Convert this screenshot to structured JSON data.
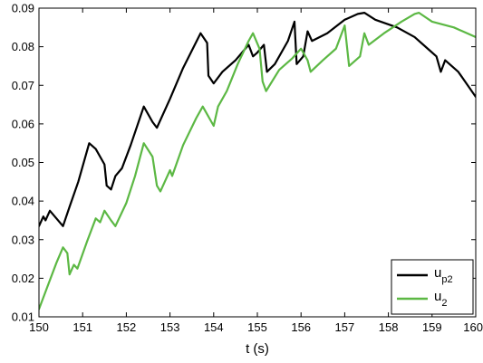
{
  "chart_data": {
    "type": "line",
    "title": "",
    "xlabel": "t (s)",
    "ylabel": "",
    "xlim": [
      150,
      160
    ],
    "ylim": [
      0.01,
      0.09
    ],
    "xticks": [
      150,
      151,
      152,
      153,
      154,
      155,
      156,
      157,
      158,
      159,
      160
    ],
    "xtick_labels": [
      "150",
      "151",
      "152",
      "153",
      "154",
      "155",
      "156",
      "157",
      "158",
      "159",
      "160"
    ],
    "yticks": [
      0.01,
      0.02,
      0.03,
      0.04,
      0.05,
      0.06,
      0.07,
      0.08,
      0.09
    ],
    "ytick_labels": [
      "0.01",
      "0.02",
      "0.03",
      "0.04",
      "0.05",
      "0.06",
      "0.07",
      "0.08",
      "0.09"
    ],
    "grid": false,
    "legend_position": "bottom-right",
    "series": [
      {
        "name": "u_p2",
        "legend_main": "u",
        "legend_sub": "p2",
        "color": "#000000",
        "points": [
          [
            150.0,
            0.0335
          ],
          [
            150.1,
            0.036
          ],
          [
            150.15,
            0.035
          ],
          [
            150.25,
            0.0375
          ],
          [
            150.4,
            0.0355
          ],
          [
            150.55,
            0.0335
          ],
          [
            150.7,
            0.0385
          ],
          [
            150.9,
            0.045
          ],
          [
            151.15,
            0.055
          ],
          [
            151.3,
            0.0535
          ],
          [
            151.5,
            0.0495
          ],
          [
            151.55,
            0.044
          ],
          [
            151.65,
            0.043
          ],
          [
            151.75,
            0.0465
          ],
          [
            151.9,
            0.0485
          ],
          [
            152.1,
            0.0545
          ],
          [
            152.4,
            0.0645
          ],
          [
            152.6,
            0.0605
          ],
          [
            152.7,
            0.059
          ],
          [
            153.0,
            0.0665
          ],
          [
            153.3,
            0.0745
          ],
          [
            153.7,
            0.0835
          ],
          [
            153.85,
            0.081
          ],
          [
            153.88,
            0.0725
          ],
          [
            154.0,
            0.0705
          ],
          [
            154.2,
            0.0735
          ],
          [
            154.5,
            0.0765
          ],
          [
            154.8,
            0.0805
          ],
          [
            154.9,
            0.0775
          ],
          [
            155.0,
            0.0785
          ],
          [
            155.15,
            0.0805
          ],
          [
            155.22,
            0.0735
          ],
          [
            155.4,
            0.0755
          ],
          [
            155.7,
            0.0815
          ],
          [
            155.85,
            0.0865
          ],
          [
            155.9,
            0.0755
          ],
          [
            156.05,
            0.0775
          ],
          [
            156.15,
            0.084
          ],
          [
            156.25,
            0.0815
          ],
          [
            156.6,
            0.0835
          ],
          [
            157.0,
            0.087
          ],
          [
            157.3,
            0.0885
          ],
          [
            157.45,
            0.0888
          ],
          [
            157.7,
            0.087
          ],
          [
            158.2,
            0.085
          ],
          [
            158.6,
            0.0825
          ],
          [
            158.9,
            0.0795
          ],
          [
            159.1,
            0.0775
          ],
          [
            159.2,
            0.0735
          ],
          [
            159.3,
            0.0765
          ],
          [
            159.6,
            0.0735
          ],
          [
            160.0,
            0.067
          ]
        ]
      },
      {
        "name": "u_2",
        "legend_main": "u",
        "legend_sub": "2",
        "color": "#5cb844",
        "points": [
          [
            150.0,
            0.012
          ],
          [
            150.2,
            0.018
          ],
          [
            150.4,
            0.024
          ],
          [
            150.55,
            0.028
          ],
          [
            150.65,
            0.0265
          ],
          [
            150.7,
            0.021
          ],
          [
            150.8,
            0.0235
          ],
          [
            150.88,
            0.0225
          ],
          [
            151.1,
            0.0295
          ],
          [
            151.3,
            0.0355
          ],
          [
            151.4,
            0.0345
          ],
          [
            151.5,
            0.0375
          ],
          [
            151.65,
            0.035
          ],
          [
            151.75,
            0.0335
          ],
          [
            152.0,
            0.0395
          ],
          [
            152.2,
            0.0465
          ],
          [
            152.4,
            0.055
          ],
          [
            152.6,
            0.0515
          ],
          [
            152.7,
            0.044
          ],
          [
            152.78,
            0.0425
          ],
          [
            152.9,
            0.0455
          ],
          [
            153.0,
            0.048
          ],
          [
            153.05,
            0.0465
          ],
          [
            153.3,
            0.0545
          ],
          [
            153.6,
            0.0615
          ],
          [
            153.75,
            0.0645
          ],
          [
            153.9,
            0.0615
          ],
          [
            154.0,
            0.0595
          ],
          [
            154.1,
            0.0645
          ],
          [
            154.3,
            0.0685
          ],
          [
            154.55,
            0.0755
          ],
          [
            154.8,
            0.0815
          ],
          [
            154.9,
            0.0835
          ],
          [
            155.05,
            0.0795
          ],
          [
            155.12,
            0.071
          ],
          [
            155.2,
            0.0685
          ],
          [
            155.5,
            0.074
          ],
          [
            155.8,
            0.077
          ],
          [
            156.0,
            0.0795
          ],
          [
            156.15,
            0.0765
          ],
          [
            156.22,
            0.0735
          ],
          [
            156.5,
            0.0765
          ],
          [
            156.8,
            0.0795
          ],
          [
            157.0,
            0.0855
          ],
          [
            157.1,
            0.075
          ],
          [
            157.35,
            0.0775
          ],
          [
            157.45,
            0.0835
          ],
          [
            157.55,
            0.0805
          ],
          [
            157.9,
            0.0835
          ],
          [
            158.3,
            0.0865
          ],
          [
            158.6,
            0.0885
          ],
          [
            158.7,
            0.0888
          ],
          [
            159.0,
            0.0865
          ],
          [
            159.5,
            0.085
          ],
          [
            160.0,
            0.0825
          ]
        ]
      }
    ]
  }
}
